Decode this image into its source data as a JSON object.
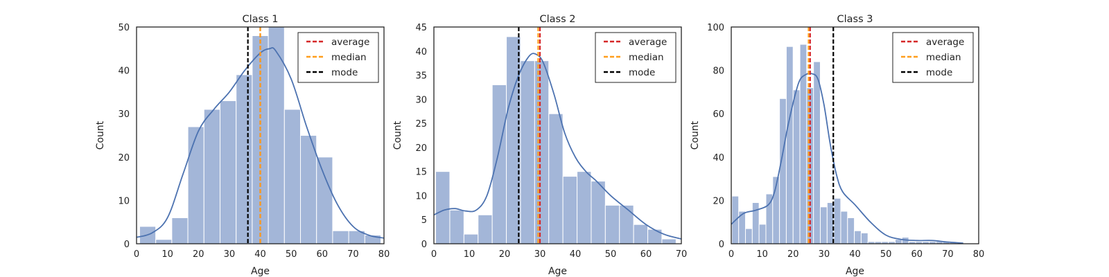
{
  "chart_data": [
    {
      "type": "histogram",
      "title": "Class 1",
      "xlabel": "Age",
      "ylabel": "Count",
      "xlim": [
        0,
        80
      ],
      "ylim": [
        0,
        50
      ],
      "xticks": [
        "0",
        "10",
        "20",
        "30",
        "40",
        "50",
        "60",
        "70",
        "80"
      ],
      "yticks": [
        "0",
        "10",
        "20",
        "30",
        "40",
        "50"
      ],
      "bins": [
        {
          "x0": 1,
          "x1": 6.2,
          "count": 4
        },
        {
          "x0": 6.2,
          "x1": 11.4,
          "count": 1
        },
        {
          "x0": 11.4,
          "x1": 16.6,
          "count": 6
        },
        {
          "x0": 16.6,
          "x1": 21.8,
          "count": 27
        },
        {
          "x0": 21.8,
          "x1": 27,
          "count": 31
        },
        {
          "x0": 27,
          "x1": 32.2,
          "count": 33
        },
        {
          "x0": 32.2,
          "x1": 37.4,
          "count": 39
        },
        {
          "x0": 37.4,
          "x1": 42.6,
          "count": 48
        },
        {
          "x0": 42.6,
          "x1": 47.8,
          "count": 50
        },
        {
          "x0": 47.8,
          "x1": 53,
          "count": 31
        },
        {
          "x0": 53,
          "x1": 58.2,
          "count": 25
        },
        {
          "x0": 58.2,
          "x1": 63.4,
          "count": 20
        },
        {
          "x0": 63.4,
          "x1": 68.6,
          "count": 3
        },
        {
          "x0": 68.6,
          "x1": 73.8,
          "count": 3
        },
        {
          "x0": 73.8,
          "x1": 79,
          "count": 2
        }
      ],
      "kde": {
        "x": [
          0,
          5,
          10,
          15,
          20,
          25,
          30,
          35,
          40,
          43,
          45,
          50,
          55,
          60,
          65,
          70,
          75,
          80
        ],
        "y": [
          1.5,
          2.5,
          6,
          16,
          26,
          31,
          35,
          40,
          44,
          45,
          44.5,
          38,
          27,
          17,
          9,
          4,
          2,
          1.3
        ]
      },
      "vlines": [
        {
          "name": "average",
          "x": 40,
          "color": "#d62728"
        },
        {
          "name": "median",
          "x": 40,
          "color": "#ff9e1b"
        },
        {
          "name": "mode",
          "x": 36,
          "color": "#000000"
        }
      ],
      "legend": [
        "average",
        "median",
        "mode"
      ],
      "legend_position": "top-right",
      "grid": false
    },
    {
      "type": "histogram",
      "title": "Class 2",
      "xlabel": "Age",
      "ylabel": "Count",
      "xlim": [
        0,
        70
      ],
      "ylim": [
        0,
        45
      ],
      "xticks": [
        "0",
        "10",
        "20",
        "30",
        "40",
        "50",
        "60",
        "70"
      ],
      "yticks": [
        "0",
        "5",
        "10",
        "15",
        "20",
        "25",
        "30",
        "35",
        "40",
        "45"
      ],
      "bins": [
        {
          "x0": 0.5,
          "x1": 4.5,
          "count": 15
        },
        {
          "x0": 4.5,
          "x1": 8.5,
          "count": 7
        },
        {
          "x0": 8.5,
          "x1": 12.5,
          "count": 2
        },
        {
          "x0": 12.5,
          "x1": 16.5,
          "count": 6
        },
        {
          "x0": 16.5,
          "x1": 20.5,
          "count": 33
        },
        {
          "x0": 20.5,
          "x1": 24.5,
          "count": 43
        },
        {
          "x0": 24.5,
          "x1": 28.5,
          "count": 38
        },
        {
          "x0": 28.5,
          "x1": 32.5,
          "count": 38
        },
        {
          "x0": 32.5,
          "x1": 36.5,
          "count": 27
        },
        {
          "x0": 36.5,
          "x1": 40.5,
          "count": 14
        },
        {
          "x0": 40.5,
          "x1": 44.5,
          "count": 15
        },
        {
          "x0": 44.5,
          "x1": 48.5,
          "count": 13
        },
        {
          "x0": 48.5,
          "x1": 52.5,
          "count": 8
        },
        {
          "x0": 52.5,
          "x1": 56.5,
          "count": 8
        },
        {
          "x0": 56.5,
          "x1": 60.5,
          "count": 4
        },
        {
          "x0": 60.5,
          "x1": 64.5,
          "count": 3
        },
        {
          "x0": 64.5,
          "x1": 68.5,
          "count": 1
        }
      ],
      "kde": {
        "x": [
          0,
          3,
          6,
          9,
          12,
          15,
          18,
          21,
          24,
          27,
          29,
          31,
          34,
          37,
          40,
          43,
          46,
          50,
          55,
          60,
          65,
          70
        ],
        "y": [
          6,
          7,
          7.3,
          6.8,
          7,
          10,
          18,
          28,
          35,
          39,
          39.3,
          37.5,
          31,
          23,
          18,
          15,
          13,
          10,
          7,
          4,
          2,
          1
        ]
      },
      "vlines": [
        {
          "name": "average",
          "x": 30,
          "color": "#d62728"
        },
        {
          "name": "median",
          "x": 29.5,
          "color": "#ff9e1b"
        },
        {
          "name": "mode",
          "x": 24,
          "color": "#000000"
        }
      ],
      "legend": [
        "average",
        "median",
        "mode"
      ],
      "legend_position": "top-right",
      "grid": false
    },
    {
      "type": "histogram",
      "title": "Class 3",
      "xlabel": "Age",
      "ylabel": "Count",
      "xlim": [
        0,
        80
      ],
      "ylim": [
        0,
        100
      ],
      "xticks": [
        "0",
        "10",
        "20",
        "30",
        "40",
        "50",
        "60",
        "70",
        "80"
      ],
      "yticks": [
        "0",
        "20",
        "40",
        "60",
        "80",
        "100"
      ],
      "bins": [
        {
          "x0": 0.2,
          "x1": 2.4,
          "count": 22
        },
        {
          "x0": 2.4,
          "x1": 4.6,
          "count": 15
        },
        {
          "x0": 4.6,
          "x1": 6.8,
          "count": 7
        },
        {
          "x0": 6.8,
          "x1": 9,
          "count": 19
        },
        {
          "x0": 9,
          "x1": 11.2,
          "count": 9
        },
        {
          "x0": 11.2,
          "x1": 13.4,
          "count": 23
        },
        {
          "x0": 13.4,
          "x1": 15.6,
          "count": 31
        },
        {
          "x0": 15.6,
          "x1": 17.8,
          "count": 67
        },
        {
          "x0": 17.8,
          "x1": 20,
          "count": 91
        },
        {
          "x0": 20,
          "x1": 22.2,
          "count": 71
        },
        {
          "x0": 22.2,
          "x1": 24.4,
          "count": 92
        },
        {
          "x0": 24.4,
          "x1": 26.6,
          "count": 72
        },
        {
          "x0": 26.6,
          "x1": 28.8,
          "count": 84
        },
        {
          "x0": 28.8,
          "x1": 31,
          "count": 17
        },
        {
          "x0": 31,
          "x1": 33.2,
          "count": 19
        },
        {
          "x0": 33.2,
          "x1": 35.4,
          "count": 21
        },
        {
          "x0": 35.4,
          "x1": 37.6,
          "count": 15
        },
        {
          "x0": 37.6,
          "x1": 39.8,
          "count": 12
        },
        {
          "x0": 39.8,
          "x1": 42,
          "count": 6
        },
        {
          "x0": 42,
          "x1": 44.2,
          "count": 5
        },
        {
          "x0": 44.2,
          "x1": 46.4,
          "count": 1
        },
        {
          "x0": 46.4,
          "x1": 48.6,
          "count": 1
        },
        {
          "x0": 48.6,
          "x1": 50.8,
          "count": 1
        },
        {
          "x0": 50.8,
          "x1": 53,
          "count": 1
        },
        {
          "x0": 53,
          "x1": 55.2,
          "count": 2
        },
        {
          "x0": 55.2,
          "x1": 57.4,
          "count": 3
        },
        {
          "x0": 57.4,
          "x1": 59.6,
          "count": 1
        },
        {
          "x0": 59.6,
          "x1": 61.8,
          "count": 1
        },
        {
          "x0": 61.8,
          "x1": 64,
          "count": 1
        },
        {
          "x0": 64,
          "x1": 66.2,
          "count": 1
        },
        {
          "x0": 66.2,
          "x1": 68.4,
          "count": 1
        },
        {
          "x0": 68.4,
          "x1": 70.6,
          "count": 1
        },
        {
          "x0": 70.6,
          "x1": 72.8,
          "count": 1
        }
      ],
      "kde": {
        "x": [
          0,
          4,
          8,
          12,
          14,
          16,
          18,
          20,
          22,
          24,
          26,
          28,
          30,
          32,
          34,
          36,
          40,
          45,
          50,
          55,
          60,
          65,
          70,
          75
        ],
        "y": [
          9,
          14,
          15.5,
          18,
          24,
          37,
          52,
          65,
          75,
          78,
          78.5,
          76,
          64,
          46,
          32,
          24,
          18,
          10,
          4,
          2,
          1.5,
          1.5,
          0.8,
          0.3
        ]
      },
      "vlines": [
        {
          "name": "average",
          "x": 25.5,
          "color": "#d62728"
        },
        {
          "name": "median",
          "x": 25,
          "color": "#ff9e1b"
        },
        {
          "name": "mode",
          "x": 33,
          "color": "#000000"
        }
      ],
      "legend": [
        "average",
        "median",
        "mode"
      ],
      "legend_position": "top-right",
      "grid": false
    }
  ],
  "colors": {
    "bar": "#a3b6d8",
    "kde": "#4c72b0",
    "axis": "#222222"
  }
}
